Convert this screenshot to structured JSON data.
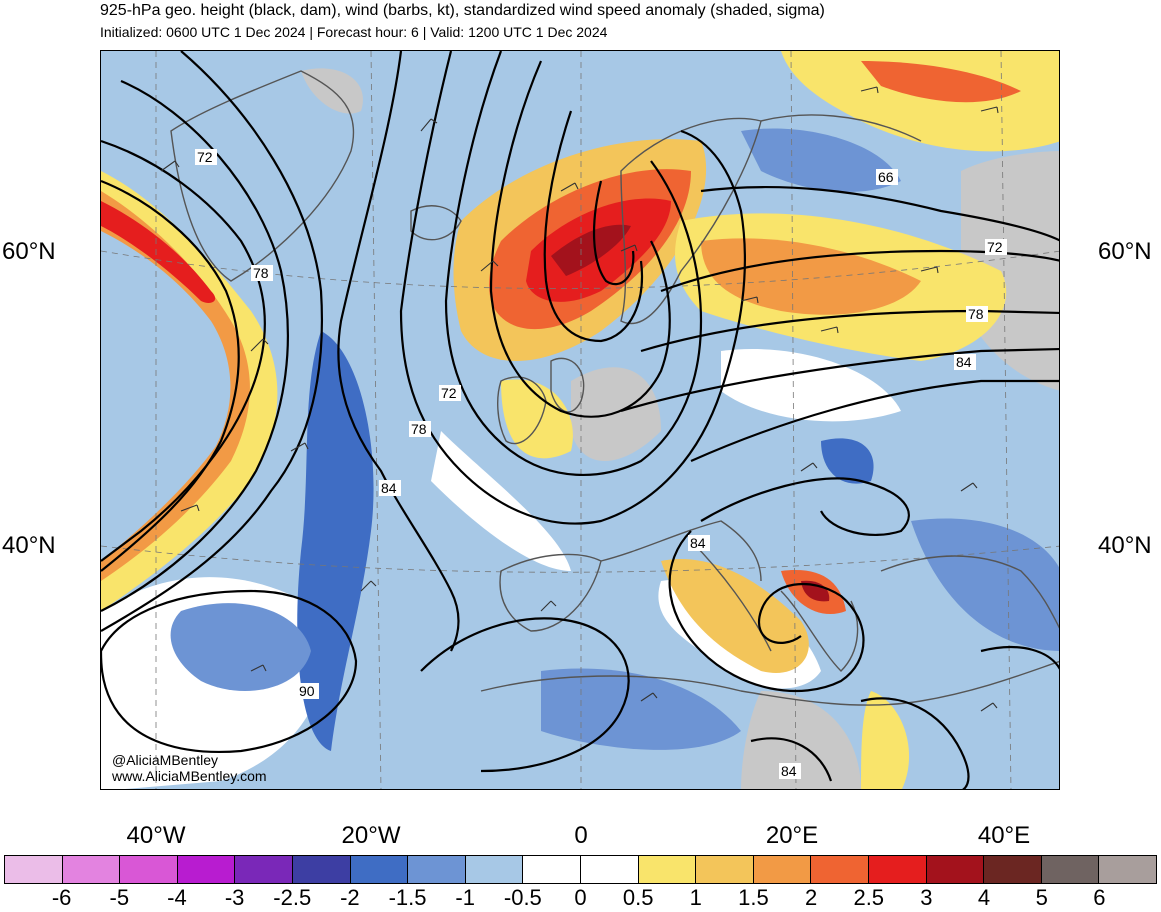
{
  "title": "925-hPa geo. height (black, dam), wind (barbs, kt), standardized wind speed anomaly (shaded, sigma)",
  "subtitle": "Initialized: 0600 UTC 1 Dec 2024 | Forecast hour: 6 | Valid: 1200 UTC 1 Dec 2024",
  "lat_labels": [
    "60°N",
    "40°N"
  ],
  "lon_labels": [
    "40°W",
    "20°W",
    "0",
    "20°E",
    "40°E"
  ],
  "contour_labels": [
    "72",
    "78",
    "72",
    "78",
    "84",
    "84",
    "90",
    "66",
    "72",
    "78",
    "84",
    "84",
    "84"
  ],
  "credit": {
    "handle": "@AliciaMBentley",
    "url": "www.AliciaMBentley.com"
  },
  "colorbar": {
    "colors": [
      "#ebbde8",
      "#e383e0",
      "#d957d6",
      "#b81cd0",
      "#7a28b8",
      "#3d3ea3",
      "#3f6dc4",
      "#6d94d4",
      "#a7c8e6",
      "#ffffff",
      "#ffffff",
      "#f9e46b",
      "#f3c55a",
      "#f29a45",
      "#ef6432",
      "#e51e1e",
      "#a3121c",
      "#6b2622",
      "#6f6361",
      "#a89e9c"
    ],
    "ticks": [
      "-6",
      "-5",
      "-4",
      "-3",
      "-2.5",
      "-2",
      "-1.5",
      "-1",
      "-0.5",
      "0",
      "0.5",
      "1",
      "1.5",
      "2",
      "2.5",
      "3",
      "4",
      "5",
      "6"
    ]
  },
  "palette": {
    "land_gray": "#c8c8c8",
    "coast": "#555555",
    "contour": "#000000"
  }
}
